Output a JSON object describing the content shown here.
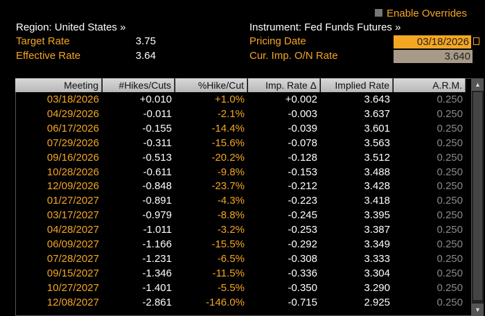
{
  "header": {
    "enable_overrides": "Enable Overrides",
    "region": "Region: United States »",
    "instrument": "Instrument: Fed Funds Futures »"
  },
  "fields": {
    "target_rate": {
      "label": "Target Rate",
      "value": "3.75"
    },
    "effective_rate": {
      "label": "Effective Rate",
      "value": "3.64"
    },
    "pricing_date": {
      "label": "Pricing Date",
      "value": "03/18/2026"
    },
    "cur_imp_rate": {
      "label": "Cur. Imp. O/N Rate",
      "value": "3.640"
    }
  },
  "table": {
    "columns": [
      "Meeting",
      "#Hikes/Cuts",
      "%Hike/Cut",
      "Imp. Rate Δ",
      "Implied Rate",
      "A.R.M."
    ],
    "rows": [
      [
        "03/18/2026",
        "+0.010",
        "+1.0%",
        "+0.002",
        "3.643",
        "0.250"
      ],
      [
        "04/29/2026",
        "-0.011",
        "-2.1%",
        "-0.003",
        "3.637",
        "0.250"
      ],
      [
        "06/17/2026",
        "-0.155",
        "-14.4%",
        "-0.039",
        "3.601",
        "0.250"
      ],
      [
        "07/29/2026",
        "-0.311",
        "-15.6%",
        "-0.078",
        "3.563",
        "0.250"
      ],
      [
        "09/16/2026",
        "-0.513",
        "-20.2%",
        "-0.128",
        "3.512",
        "0.250"
      ],
      [
        "10/28/2026",
        "-0.611",
        "-9.8%",
        "-0.153",
        "3.488",
        "0.250"
      ],
      [
        "12/09/2026",
        "-0.848",
        "-23.7%",
        "-0.212",
        "3.428",
        "0.250"
      ],
      [
        "01/27/2027",
        "-0.891",
        "-4.3%",
        "-0.223",
        "3.418",
        "0.250"
      ],
      [
        "03/17/2027",
        "-0.979",
        "-8.8%",
        "-0.245",
        "3.395",
        "0.250"
      ],
      [
        "04/28/2027",
        "-1.011",
        "-3.2%",
        "-0.253",
        "3.387",
        "0.250"
      ],
      [
        "06/09/2027",
        "-1.166",
        "-15.5%",
        "-0.292",
        "3.349",
        "0.250"
      ],
      [
        "07/28/2027",
        "-1.231",
        "-6.5%",
        "-0.308",
        "3.333",
        "0.250"
      ],
      [
        "09/15/2027",
        "-1.346",
        "-11.5%",
        "-0.336",
        "3.304",
        "0.250"
      ],
      [
        "10/27/2027",
        "-1.401",
        "-5.5%",
        "-0.350",
        "3.290",
        "0.250"
      ],
      [
        "12/08/2027",
        "-2.861",
        "-146.0%",
        "-0.715",
        "2.925",
        "0.250"
      ]
    ]
  }
}
